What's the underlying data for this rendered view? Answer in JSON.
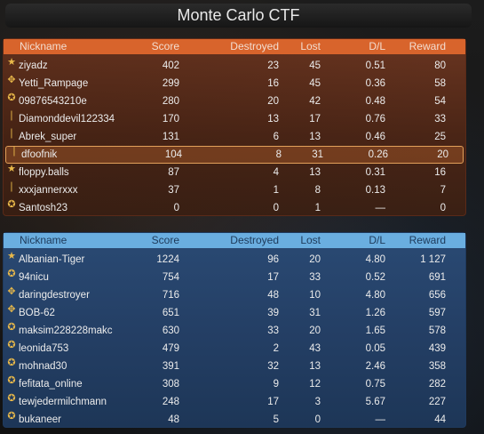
{
  "title": "Monte Carlo CTF",
  "columns": {
    "nickname": "Nickname",
    "score": "Score",
    "destroyed": "Destroyed",
    "lost": "Lost",
    "dl": "D/L",
    "reward": "Reward"
  },
  "red_team": [
    {
      "icon": "★",
      "nickname": "ziyadz",
      "score": "402",
      "destroyed": "23",
      "lost": "45",
      "dl": "0.51",
      "reward": "80"
    },
    {
      "icon": "✥",
      "nickname": "Yetti_Rampage",
      "score": "299",
      "destroyed": "16",
      "lost": "45",
      "dl": "0.36",
      "reward": "58"
    },
    {
      "icon": "✪",
      "nickname": "09876543210e",
      "score": "280",
      "destroyed": "20",
      "lost": "42",
      "dl": "0.48",
      "reward": "54"
    },
    {
      "icon": "❘",
      "nickname": "Diamonddevil122334",
      "score": "170",
      "destroyed": "13",
      "lost": "17",
      "dl": "0.76",
      "reward": "33"
    },
    {
      "icon": "❘",
      "nickname": "Abrek_super",
      "score": "131",
      "destroyed": "6",
      "lost": "13",
      "dl": "0.46",
      "reward": "25"
    },
    {
      "icon": "❘",
      "nickname": "dfoofnik",
      "score": "104",
      "destroyed": "8",
      "lost": "31",
      "dl": "0.26",
      "reward": "20"
    },
    {
      "icon": "★",
      "nickname": "floppy.balls",
      "score": "87",
      "destroyed": "4",
      "lost": "13",
      "dl": "0.31",
      "reward": "16"
    },
    {
      "icon": "❘",
      "nickname": "xxxjannerxxx",
      "score": "37",
      "destroyed": "1",
      "lost": "8",
      "dl": "0.13",
      "reward": "7"
    },
    {
      "icon": "✪",
      "nickname": "Santosh23",
      "score": "0",
      "destroyed": "0",
      "lost": "1",
      "dl": "—",
      "reward": "0"
    }
  ],
  "blue_team": [
    {
      "icon": "★",
      "nickname": "Albanian-Tiger",
      "score": "1224",
      "destroyed": "96",
      "lost": "20",
      "dl": "4.80",
      "reward": "1 127"
    },
    {
      "icon": "✪",
      "nickname": "94nicu",
      "score": "754",
      "destroyed": "17",
      "lost": "33",
      "dl": "0.52",
      "reward": "691"
    },
    {
      "icon": "✥",
      "nickname": "daringdestroyer",
      "score": "716",
      "destroyed": "48",
      "lost": "10",
      "dl": "4.80",
      "reward": "656"
    },
    {
      "icon": "✥",
      "nickname": "BOB-62",
      "score": "651",
      "destroyed": "39",
      "lost": "31",
      "dl": "1.26",
      "reward": "597"
    },
    {
      "icon": "✪",
      "nickname": "maksim228228makc",
      "score": "630",
      "destroyed": "33",
      "lost": "20",
      "dl": "1.65",
      "reward": "578"
    },
    {
      "icon": "✪",
      "nickname": "leonida753",
      "score": "479",
      "destroyed": "2",
      "lost": "43",
      "dl": "0.05",
      "reward": "439"
    },
    {
      "icon": "✪",
      "nickname": "mohnad30",
      "score": "391",
      "destroyed": "32",
      "lost": "13",
      "dl": "2.46",
      "reward": "358"
    },
    {
      "icon": "✪",
      "nickname": "fefitata_online",
      "score": "308",
      "destroyed": "9",
      "lost": "12",
      "dl": "0.75",
      "reward": "282"
    },
    {
      "icon": "✪",
      "nickname": "tewjedermilchmann",
      "score": "248",
      "destroyed": "17",
      "lost": "3",
      "dl": "5.67",
      "reward": "227"
    },
    {
      "icon": "✪",
      "nickname": "bukaneer",
      "score": "48",
      "destroyed": "5",
      "lost": "0",
      "dl": "—",
      "reward": "44"
    }
  ],
  "highlighted_player": "dfoofnik"
}
